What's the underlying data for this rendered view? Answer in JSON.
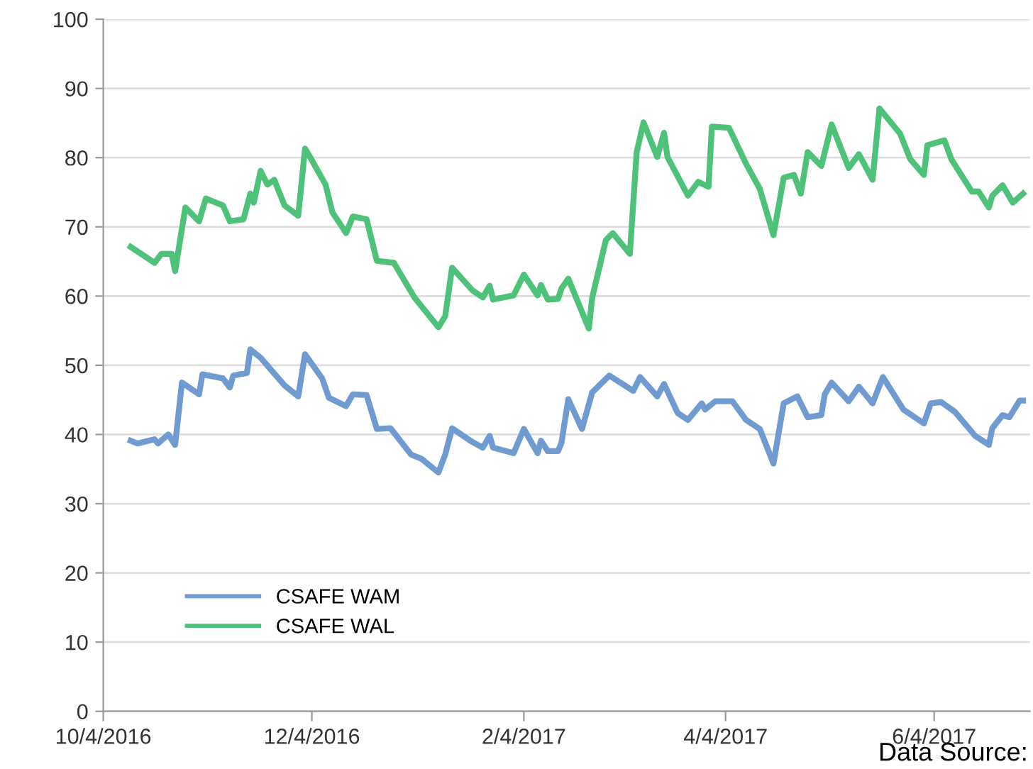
{
  "chart_data": {
    "type": "line",
    "xlim": [
      "2016-10-04",
      "2017-07-02"
    ],
    "xticks": [
      {
        "value": "2016-10-04",
        "label": "10/4/2016"
      },
      {
        "value": "2016-12-04",
        "label": "12/4/2016"
      },
      {
        "value": "2017-02-04",
        "label": "2/4/2017"
      },
      {
        "value": "2017-04-04",
        "label": "4/4/2017"
      },
      {
        "value": "2017-06-04",
        "label": "6/4/2017"
      }
    ],
    "ylim": [
      0,
      100
    ],
    "yticks": [
      0,
      10,
      20,
      30,
      40,
      50,
      60,
      70,
      80,
      90,
      100
    ],
    "grid": "y",
    "legend": "bottom left",
    "marker": "none",
    "line_style": "solid",
    "annotations": [
      "Data Source:"
    ],
    "series": [
      {
        "name": "CSAFE WAM",
        "color": "#6f9bd1",
        "x": [
          "2016-10-12",
          "2016-10-14",
          "2016-10-19",
          "2016-10-20",
          "2016-10-23",
          "2016-10-25",
          "2016-10-27",
          "2016-11-01",
          "2016-11-02",
          "2016-11-08",
          "2016-11-10",
          "2016-11-11",
          "2016-11-15",
          "2016-11-16",
          "2016-11-19",
          "2016-11-26",
          "2016-11-30",
          "2016-12-02",
          "2016-12-07",
          "2016-12-09",
          "2016-12-14",
          "2016-12-16",
          "2016-12-20",
          "2016-12-23",
          "2016-12-27",
          "2017-01-02",
          "2017-01-05",
          "2017-01-10",
          "2017-01-12",
          "2017-01-14",
          "2017-01-20",
          "2017-01-23",
          "2017-01-25",
          "2017-01-26",
          "2017-02-01",
          "2017-02-04",
          "2017-02-08",
          "2017-02-09",
          "2017-02-11",
          "2017-02-14",
          "2017-02-15",
          "2017-02-17",
          "2017-02-21",
          "2017-02-24",
          "2017-03-01",
          "2017-03-08",
          "2017-03-10",
          "2017-03-15",
          "2017-03-17",
          "2017-03-21",
          "2017-03-24",
          "2017-03-28",
          "2017-03-29",
          "2017-04-01",
          "2017-04-06",
          "2017-04-10",
          "2017-04-14",
          "2017-04-18",
          "2017-04-21",
          "2017-04-25",
          "2017-04-28",
          "2017-05-02",
          "2017-05-03",
          "2017-05-05",
          "2017-05-10",
          "2017-05-13",
          "2017-05-17",
          "2017-05-20",
          "2017-05-26",
          "2017-06-01",
          "2017-06-03",
          "2017-06-06",
          "2017-06-10",
          "2017-06-16",
          "2017-06-20",
          "2017-06-21",
          "2017-06-24",
          "2017-06-26",
          "2017-06-29",
          "2017-06-30"
        ],
        "values": [
          39.1,
          38.7,
          39.3,
          38.7,
          40,
          38.5,
          47.5,
          45.8,
          48.7,
          48.1,
          46.8,
          48.5,
          48.9,
          52.3,
          51.1,
          47.1,
          45.5,
          51.6,
          48.1,
          45.3,
          44.1,
          45.8,
          45.7,
          40.8,
          40.9,
          37.1,
          36.5,
          34.5,
          37.1,
          40.9,
          38.9,
          38.1,
          39.8,
          38.1,
          37.3,
          40.8,
          37.3,
          39.1,
          37.6,
          37.6,
          38.8,
          45.1,
          40.8,
          46.1,
          48.5,
          46.3,
          48.3,
          45.5,
          47.3,
          43.1,
          42.1,
          44.5,
          43.6,
          44.8,
          44.8,
          42.1,
          40.8,
          35.8,
          44.5,
          45.5,
          42.5,
          42.8,
          45.8,
          47.5,
          44.8,
          46.9,
          44.5,
          48.3,
          43.6,
          41.6,
          44.5,
          44.7,
          43.3,
          39.8,
          38.5,
          40.9,
          42.8,
          42.5,
          44.9,
          44.9
        ]
      },
      {
        "name": "CSAFE WAL",
        "color": "#4fc27a",
        "x": [
          "2016-10-12",
          "2016-10-19",
          "2016-10-21",
          "2016-10-24",
          "2016-10-25",
          "2016-10-28",
          "2016-11-01",
          "2016-11-03",
          "2016-11-08",
          "2016-11-10",
          "2016-11-14",
          "2016-11-16",
          "2016-11-17",
          "2016-11-19",
          "2016-11-21",
          "2016-11-23",
          "2016-11-26",
          "2016-11-30",
          "2016-12-02",
          "2016-12-03",
          "2016-12-08",
          "2016-12-10",
          "2016-12-14",
          "2016-12-16",
          "2016-12-20",
          "2016-12-23",
          "2016-12-28",
          "2017-01-03",
          "2017-01-10",
          "2017-01-12",
          "2017-01-14",
          "2017-01-20",
          "2017-01-23",
          "2017-01-25",
          "2017-01-26",
          "2017-02-01",
          "2017-02-04",
          "2017-02-08",
          "2017-02-09",
          "2017-02-11",
          "2017-02-14",
          "2017-02-15",
          "2017-02-17",
          "2017-02-23",
          "2017-02-24",
          "2017-02-28",
          "2017-03-02",
          "2017-03-07",
          "2017-03-09",
          "2017-03-11",
          "2017-03-15",
          "2017-03-17",
          "2017-03-18",
          "2017-03-24",
          "2017-03-27",
          "2017-03-30",
          "2017-03-31",
          "2017-04-05",
          "2017-04-10",
          "2017-04-14",
          "2017-04-18",
          "2017-04-21",
          "2017-04-24",
          "2017-04-26",
          "2017-04-28",
          "2017-05-02",
          "2017-05-03",
          "2017-05-05",
          "2017-05-10",
          "2017-05-13",
          "2017-05-17",
          "2017-05-19",
          "2017-05-25",
          "2017-05-28",
          "2017-06-01",
          "2017-06-02",
          "2017-06-07",
          "2017-06-09",
          "2017-06-15",
          "2017-06-17",
          "2017-06-20",
          "2017-06-21",
          "2017-06-24",
          "2017-06-27",
          "2017-06-30"
        ],
        "values": [
          67.1,
          64.8,
          66.1,
          66.1,
          63.6,
          72.8,
          70.8,
          74.1,
          73.1,
          70.8,
          71.1,
          74.8,
          73.5,
          78.1,
          76.1,
          76.8,
          73.1,
          71.6,
          81.3,
          80.5,
          76.1,
          72.1,
          69.1,
          71.5,
          71.1,
          65.1,
          64.8,
          59.8,
          55.5,
          57.1,
          64.1,
          60.8,
          59.8,
          61.5,
          59.5,
          60.1,
          63.1,
          60.1,
          61.6,
          59.5,
          59.6,
          61.1,
          62.5,
          55.3,
          59.8,
          68.1,
          69.1,
          66.1,
          80.8,
          85.1,
          80.1,
          83.6,
          80.1,
          74.5,
          76.5,
          75.8,
          84.5,
          84.3,
          79.1,
          75.5,
          68.8,
          77.1,
          77.5,
          74.8,
          80.8,
          78.8,
          80.8,
          84.8,
          78.5,
          80.5,
          76.8,
          87.1,
          83.5,
          79.8,
          77.5,
          81.8,
          82.5,
          79.8,
          75.1,
          75.1,
          72.8,
          74.5,
          76,
          73.5,
          74.8
        ]
      }
    ]
  }
}
